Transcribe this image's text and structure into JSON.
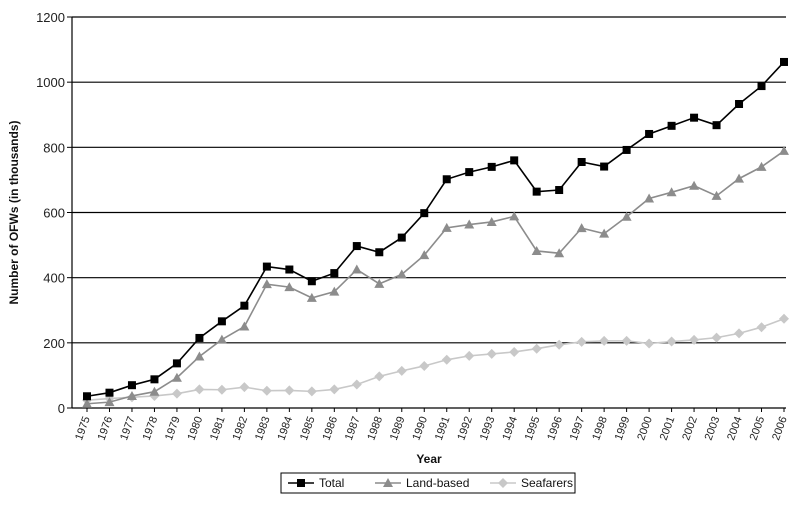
{
  "chart_data": {
    "type": "line",
    "xlabel": "Year",
    "ylabel": "Number of OFWs (in thousands)",
    "ylim": [
      0,
      1200
    ],
    "yticks": [
      0,
      200,
      400,
      600,
      800,
      1000,
      1200
    ],
    "grid": "horizontal",
    "legend_position": "bottom",
    "x": [
      "1975",
      "1976",
      "1977",
      "1978",
      "1979",
      "1980",
      "1981",
      "1982",
      "1983",
      "1984",
      "1985",
      "1986",
      "1987",
      "1988",
      "1989",
      "1990",
      "1991",
      "1992",
      "1993",
      "1994",
      "1995",
      "1996",
      "1997",
      "1998",
      "1999",
      "2000",
      "2001",
      "2002",
      "2003",
      "2004",
      "2005",
      "2006"
    ],
    "series": [
      {
        "name": "Total",
        "color": "#000000",
        "marker": "square",
        "values": [
          36,
          47,
          70,
          88,
          137,
          215,
          266,
          314,
          434,
          425,
          389,
          414,
          497,
          478,
          523,
          598,
          702,
          724,
          740,
          760,
          664,
          669,
          755,
          741,
          792,
          841,
          866,
          891,
          868,
          933,
          988,
          1062
        ]
      },
      {
        "name": "Land-based",
        "color": "#8c8c8c",
        "marker": "triangle",
        "values": [
          13,
          18,
          37,
          50,
          93,
          158,
          210,
          250,
          380,
          371,
          338,
          357,
          425,
          381,
          410,
          469,
          553,
          563,
          571,
          588,
          482,
          475,
          552,
          535,
          587,
          643,
          662,
          682,
          651,
          704,
          740,
          789
        ]
      },
      {
        "name": "Seafarers",
        "color": "#c8c8c8",
        "marker": "diamond",
        "values": [
          24,
          29,
          33,
          37,
          44,
          57,
          56,
          64,
          53,
          54,
          51,
          57,
          72,
          97,
          114,
          129,
          148,
          160,
          166,
          172,
          182,
          194,
          203,
          206,
          206,
          198,
          204,
          209,
          216,
          229,
          248,
          274
        ]
      }
    ]
  }
}
